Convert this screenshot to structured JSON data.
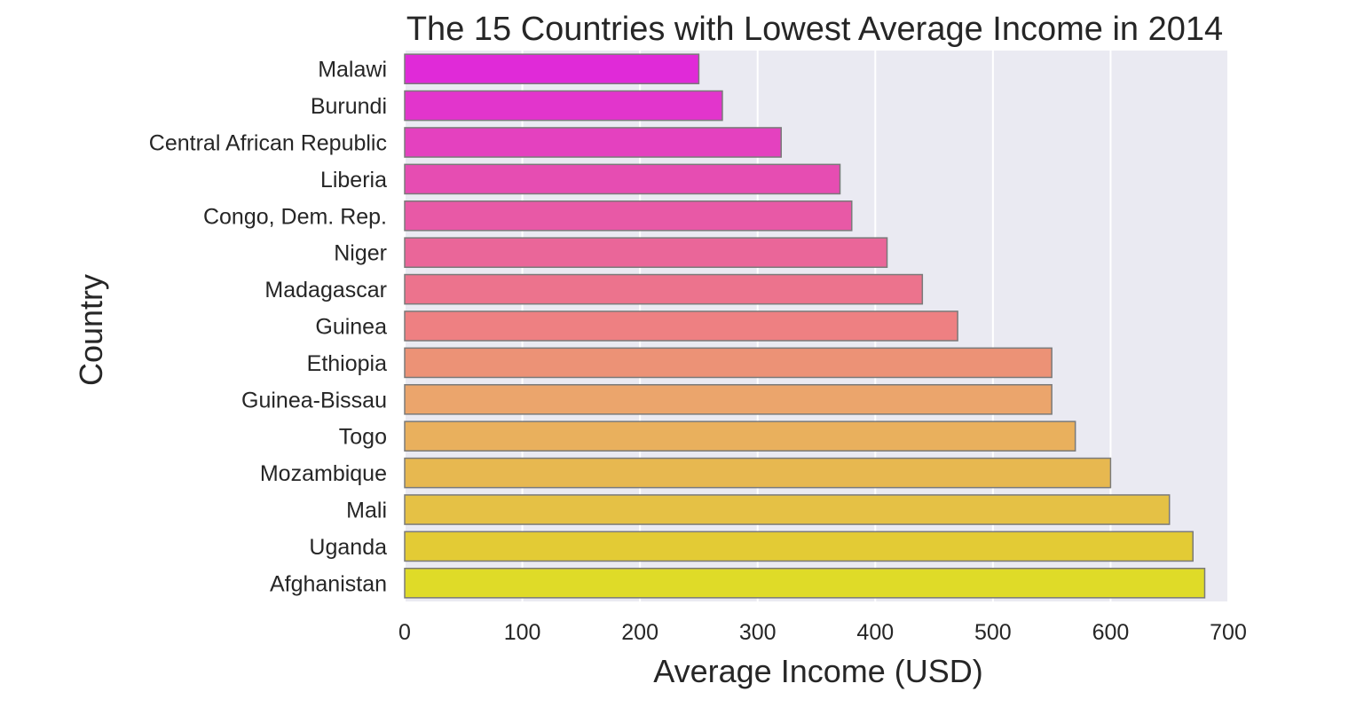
{
  "chart_data": {
    "type": "bar",
    "orientation": "horizontal",
    "title": "The 15 Countries with Lowest Average Income in 2014",
    "xlabel": "Average Income (USD)",
    "ylabel": "Country",
    "xlim": [
      0,
      700
    ],
    "xticks": [
      "0",
      "100",
      "200",
      "300",
      "400",
      "500",
      "600",
      "700"
    ],
    "grid": true,
    "categories": [
      "Malawi",
      "Burundi",
      "Central African Republic",
      "Liberia",
      "Congo, Dem. Rep.",
      "Niger",
      "Madagascar",
      "Guinea",
      "Ethiopia",
      "Guinea-Bissau",
      "Togo",
      "Mozambique",
      "Mali",
      "Uganda",
      "Afghanistan"
    ],
    "values": [
      250,
      270,
      320,
      370,
      380,
      410,
      440,
      470,
      550,
      550,
      570,
      600,
      650,
      670,
      680
    ],
    "colors": [
      "#e02ad8",
      "#e235cc",
      "#e441bf",
      "#e64db2",
      "#e859a6",
      "#ea6699",
      "#ec738d",
      "#ee8082",
      "#ec9276",
      "#eba56c",
      "#e9b05d",
      "#e7b850",
      "#e5c145",
      "#e3cb35",
      "#dfdb28"
    ],
    "plot_background": "#eaeaf2",
    "bar_edge_color": "#7a7a7a"
  }
}
